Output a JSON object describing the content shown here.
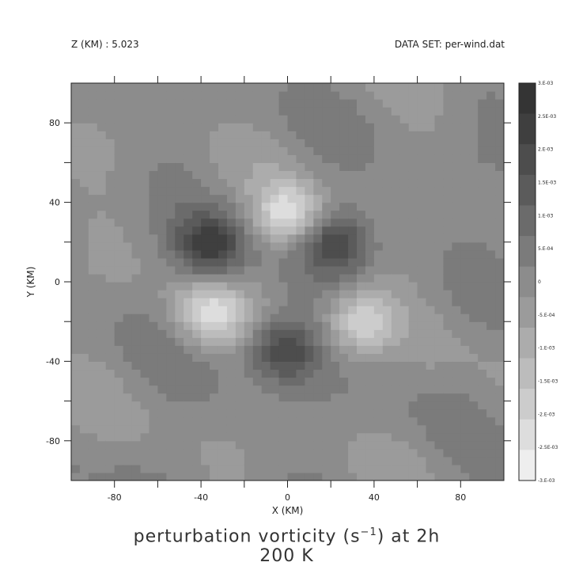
{
  "header": {
    "z_label": "Z (KM) : 5.023",
    "dataset_label": "DATA SET: per-wind.dat"
  },
  "title": {
    "line1_prefix": "perturbation vorticity (s",
    "line1_exp": "−1",
    "line1_suffix": ") at 2h",
    "line2": "200 K"
  },
  "chart_data": {
    "type": "heatmap",
    "subtype": "filled-contour",
    "xlabel": "X (KM)",
    "ylabel": "Y (KM)",
    "xlim": [
      -100,
      100
    ],
    "ylim": [
      -100,
      100
    ],
    "x_ticks": [
      -80,
      -40,
      0,
      40,
      80
    ],
    "y_ticks": [
      -80,
      -40,
      0,
      40,
      80
    ],
    "x_tick_labels": [
      "-80",
      "-40",
      "0",
      "40",
      "80"
    ],
    "y_tick_labels": [
      "-80",
      "-40",
      "0",
      "40",
      "80"
    ],
    "grid": false,
    "colorbar": {
      "placement": "right",
      "levels": [
        0.003,
        0.0025,
        0.002,
        0.0015,
        0.001,
        0.0005,
        0,
        -0.0005,
        -0.001,
        -0.0015,
        -0.002,
        -0.0025,
        -0.003
      ],
      "labels": [
        "3.E-03",
        "2.5E-03",
        "2.E-03",
        "1.5E-03",
        "1.E-03",
        "5.E-04",
        "0",
        "-5.E-04",
        "-1.E-03",
        "-1.5E-03",
        "-2.E-03",
        "-2.5E-03",
        "-3.E-03"
      ],
      "colors": [
        "#343434",
        "#3f3f3f",
        "#4d4d4d",
        "#5b5b5b",
        "#6b6b6b",
        "#7b7b7b",
        "#8c8c8c",
        "#9b9b9b",
        "#acacac",
        "#bcbcbc",
        "#cccccc",
        "#dddddd",
        "#eeeeee"
      ]
    },
    "features": [
      {
        "kind": "positive",
        "x": -36,
        "y": 18,
        "value": 0.0025
      },
      {
        "kind": "positive",
        "x": 22,
        "y": 20,
        "value": 0.0022
      },
      {
        "kind": "positive",
        "x": -2,
        "y": -34,
        "value": 0.0024
      },
      {
        "kind": "negative",
        "x": 0,
        "y": 34,
        "value": -0.0025
      },
      {
        "kind": "negative",
        "x": -36,
        "y": -16,
        "value": -0.0022
      },
      {
        "kind": "negative",
        "x": 34,
        "y": -20,
        "value": -0.0021
      }
    ]
  }
}
